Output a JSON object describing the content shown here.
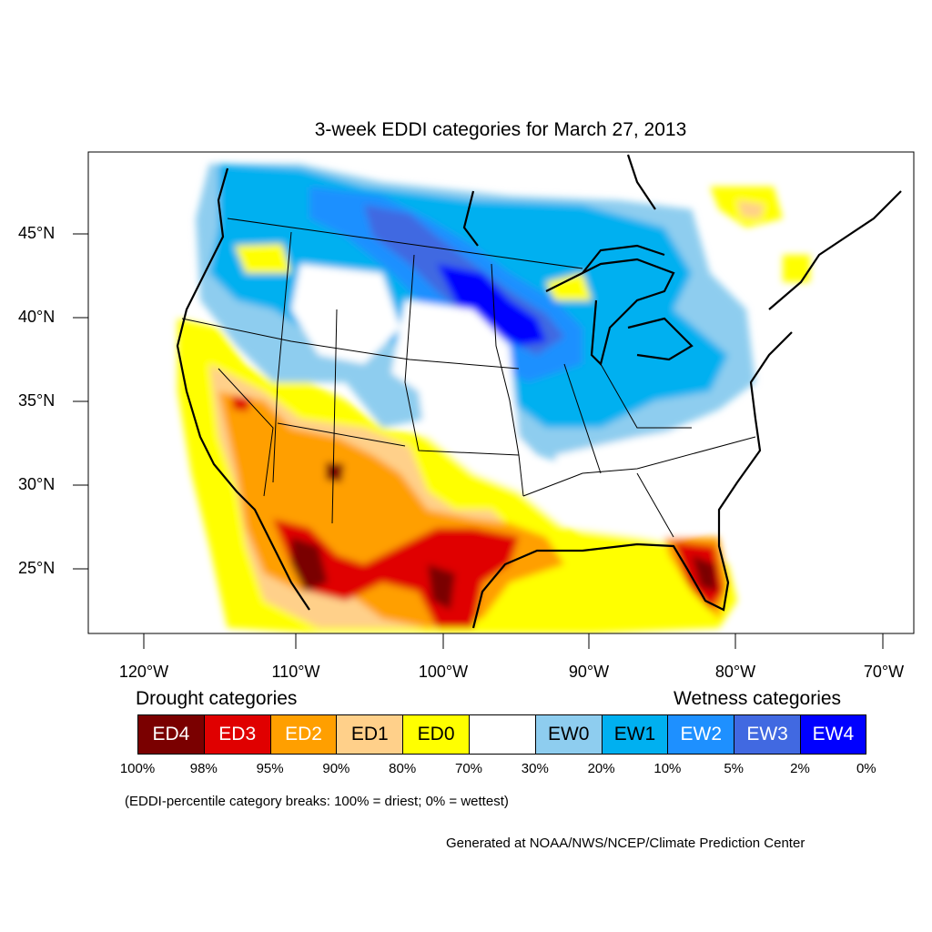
{
  "title": "3-week EDDI categories for March 27, 2013",
  "lat_labels": [
    "45°N",
    "40°N",
    "35°N",
    "30°N",
    "25°N"
  ],
  "lon_labels": [
    "120°W",
    "110°W",
    "100°W",
    "90°W",
    "80°W",
    "70°W"
  ],
  "legend": {
    "drought_heading": "Drought categories",
    "wetness_heading": "Wetness categories",
    "categories": [
      {
        "label": "ED4",
        "color": "#7a0000"
      },
      {
        "label": "ED3",
        "color": "#e00000"
      },
      {
        "label": "ED2",
        "color": "#ff9f00"
      },
      {
        "label": "ED1",
        "color": "#ffd08a"
      },
      {
        "label": "ED0",
        "color": "#ffff00"
      },
      {
        "label": "",
        "color": "#ffffff"
      },
      {
        "label": "EW0",
        "color": "#8ecdef"
      },
      {
        "label": "EW1",
        "color": "#00b0f0"
      },
      {
        "label": "EW2",
        "color": "#1e90ff"
      },
      {
        "label": "EW3",
        "color": "#4169e1"
      },
      {
        "label": "EW4",
        "color": "#0000ff"
      }
    ],
    "percent_breaks": [
      "100%",
      "98%",
      "95%",
      "90%",
      "80%",
      "70%",
      "30%",
      "20%",
      "10%",
      "5%",
      "2%",
      "0%"
    ]
  },
  "note": "(EDDI-percentile category breaks: 100% = driest; 0% = wettest)",
  "credit": "Generated at NOAA/NWS/NCEP/Climate Prediction Center"
}
